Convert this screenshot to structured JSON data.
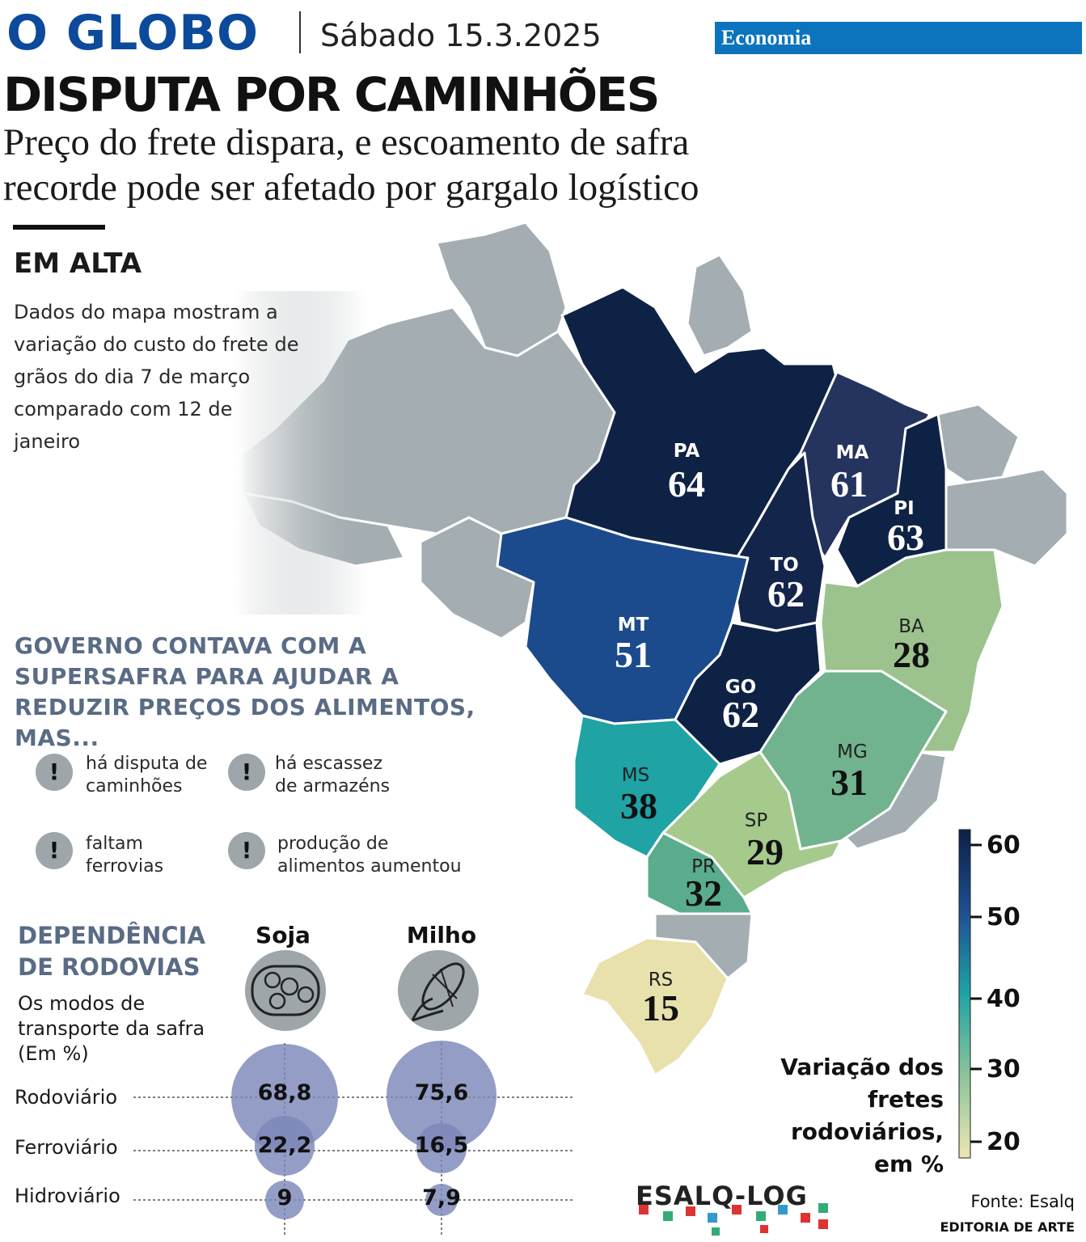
{
  "header": {
    "logo": "O GLOBO",
    "date": "Sábado 15.3.2025",
    "section": "Economia"
  },
  "headline": "DISPUTA POR CAMINHÕES",
  "subheadline": "Preço do frete dispara, e escoamento de safra recorde pode ser afetado por gargalo logístico",
  "map_panel": {
    "title": "EM ALTA",
    "intro": "Dados do mapa mostram a variação do custo do frete de grãos do dia 7 de março comparado com 12 de janeiro"
  },
  "government": {
    "title": "GOVERNO CONTAVA COM A SUPERSAFRA PARA AJUDAR A REDUZIR PREÇOS DOS ALIMENTOS, MAS...",
    "bang": "!",
    "reasons": [
      {
        "line1": "há disputa de",
        "line2": "caminhões"
      },
      {
        "line1": "há escassez",
        "line2": "de armazéns"
      },
      {
        "line1": "faltam",
        "line2": "ferrovias"
      },
      {
        "line1": "produção de",
        "line2": "alimentos aumentou"
      }
    ]
  },
  "dependence": {
    "title": "DEPENDÊNCIA DE RODOVIAS",
    "subtitle": "Os modos de transporte da safra (Em %)",
    "columns": [
      "Soja",
      "Milho"
    ],
    "rows": [
      "Rodoviário",
      "Ferroviário",
      "Hidroviário"
    ],
    "values": {
      "Soja": {
        "Rodoviário": "68,8",
        "Ferroviário": "22,2",
        "Hidroviário": "9"
      },
      "Milho": {
        "Rodoviário": "75,6",
        "Ferroviário": "16,5",
        "Hidroviário": "7,9"
      }
    }
  },
  "states": [
    {
      "abbr": "PA",
      "value": "64"
    },
    {
      "abbr": "MA",
      "value": "61"
    },
    {
      "abbr": "PI",
      "value": "63"
    },
    {
      "abbr": "TO",
      "value": "62"
    },
    {
      "abbr": "MT",
      "value": "51"
    },
    {
      "abbr": "GO",
      "value": "62"
    },
    {
      "abbr": "BA",
      "value": "28"
    },
    {
      "abbr": "MG",
      "value": "31"
    },
    {
      "abbr": "MS",
      "value": "38"
    },
    {
      "abbr": "SP",
      "value": "29"
    },
    {
      "abbr": "PR",
      "value": "32"
    },
    {
      "abbr": "RS",
      "value": "15"
    }
  ],
  "legend": {
    "title": "Variação dos fretes rodoviários, em %",
    "ticks": [
      "60",
      "50",
      "40",
      "30",
      "20"
    ],
    "colors": [
      "#0c2145",
      "#1d4f93",
      "#1fa3a5",
      "#8cc49a",
      "#ede6b2"
    ]
  },
  "footer": {
    "logo": "ESALQ-LOG",
    "source": "Fonte: Esalq",
    "credit": "EDITORIA DE ARTE"
  },
  "colors": {
    "brand": "#0c4a9c",
    "section": "#0b74bd",
    "muted_heading": "#5a6b85",
    "other_states": "#a4adb1",
    "bubble": "#7d87b8"
  }
}
